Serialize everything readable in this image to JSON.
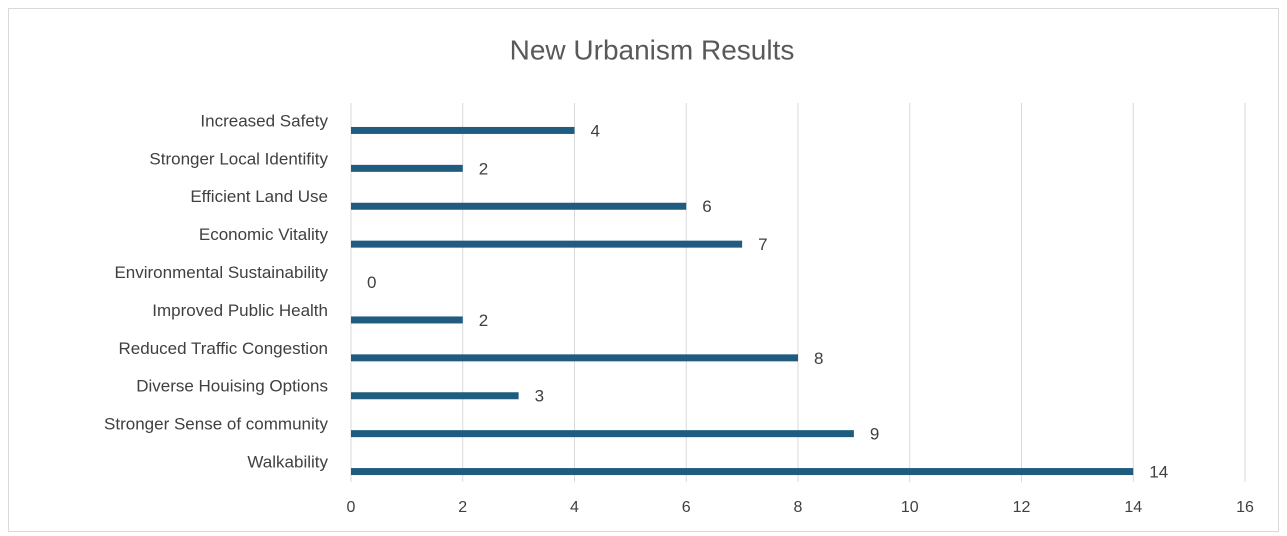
{
  "chart_data": {
    "type": "barh",
    "title": "New Urbanism Results",
    "categories": [
      "Increased Safety",
      "Stronger Local Identifity",
      "Efficient Land Use",
      "Economic Vitality",
      "Environmental Sustainability",
      "Improved Public Health",
      "Reduced Traffic Congestion",
      "Diverse Houising Options",
      "Stronger Sense of community",
      "Walkability"
    ],
    "values": [
      4,
      2,
      6,
      7,
      0,
      2,
      8,
      3,
      9,
      14
    ],
    "color": "#1f5c80",
    "xlim": [
      0,
      16
    ],
    "xticks": [
      0,
      2,
      4,
      6,
      8,
      10,
      12,
      14,
      16
    ],
    "grid": true
  }
}
